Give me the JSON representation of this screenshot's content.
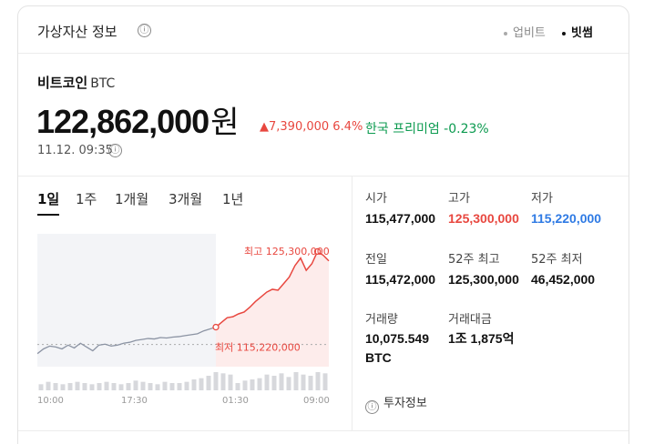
{
  "header": {
    "title": "가상자산 정보",
    "info_icon": "ⓘ"
  },
  "exchanges": [
    {
      "label": "업비트",
      "active": false
    },
    {
      "label": "빗썸",
      "active": true
    }
  ],
  "coin": {
    "name": "비트코인",
    "symbol": "BTC"
  },
  "price": {
    "value": "122,862,000",
    "unit": "원"
  },
  "change": {
    "text": "▲7,390,000 6.4%",
    "color": "#e8473f"
  },
  "premium": {
    "text": "한국 프리미엄 -0.23%",
    "color": "#0b9a4f"
  },
  "timestamp": "11.12. 09:35",
  "tabs": [
    {
      "label": "1일",
      "active": true
    },
    {
      "label": "1주",
      "active": false
    },
    {
      "label": "1개월",
      "active": false
    },
    {
      "label": "3개월",
      "active": false
    },
    {
      "label": "1년",
      "active": false
    }
  ],
  "stats": [
    {
      "label": "시가",
      "value": "115,477,000",
      "tone": "normal"
    },
    {
      "label": "고가",
      "value": "125,300,000",
      "tone": "red"
    },
    {
      "label": "저가",
      "value": "115,220,000",
      "tone": "blue"
    },
    {
      "label": "전일",
      "value": "115,472,000",
      "tone": "normal"
    },
    {
      "label": "52주 최고",
      "value": "125,300,000",
      "tone": "normal"
    },
    {
      "label": "52주 최저",
      "value": "46,452,000",
      "tone": "normal"
    },
    {
      "label": "거래량",
      "value": "10,075.549 BTC",
      "tone": "normal"
    },
    {
      "label": "거래대금",
      "value": "1조 1,875억",
      "tone": "normal"
    }
  ],
  "invest_link": "투자정보",
  "chart_data": {
    "type": "line",
    "x_ticks": [
      "10:00",
      "17:30",
      "01:30",
      "09:00"
    ],
    "high_label": "최고 125,300,000",
    "low_label": "최저 115,220,000",
    "reference_line": 115472000,
    "ylim": [
      113700000,
      126200000
    ],
    "colors": {
      "before": "#8b93a3",
      "after": "#e8473f",
      "fill_after": "#fde7e6",
      "fill_before": "#f3f4f7"
    },
    "series_before": [
      114500000,
      115000000,
      115300000,
      115200000,
      115000000,
      115400000,
      115100000,
      115600000,
      115200000,
      114800000,
      115400000,
      115500000,
      115300000,
      115400000,
      115600000,
      115700000,
      115900000,
      116000000,
      116100000,
      116050000,
      116200000,
      116150000,
      116250000,
      116300000,
      116400000,
      116500000,
      116600000,
      116900000,
      117100000,
      117300000
    ],
    "series_after": [
      117300000,
      117800000,
      118300000,
      118400000,
      118700000,
      118900000,
      119400000,
      120000000,
      120500000,
      121000000,
      121300000,
      121200000,
      121900000,
      122600000,
      123800000,
      124600000,
      123300000,
      124000000,
      125300000,
      124900000,
      124300000
    ],
    "volume": [
      5,
      7,
      6,
      5,
      6,
      7,
      6,
      5,
      6,
      7,
      6,
      5,
      6,
      8,
      7,
      6,
      5,
      7,
      6,
      6,
      7,
      9,
      10,
      12,
      15,
      14,
      13,
      6,
      8,
      9,
      10,
      13,
      12,
      14,
      11,
      15,
      13,
      12,
      15,
      14
    ]
  }
}
